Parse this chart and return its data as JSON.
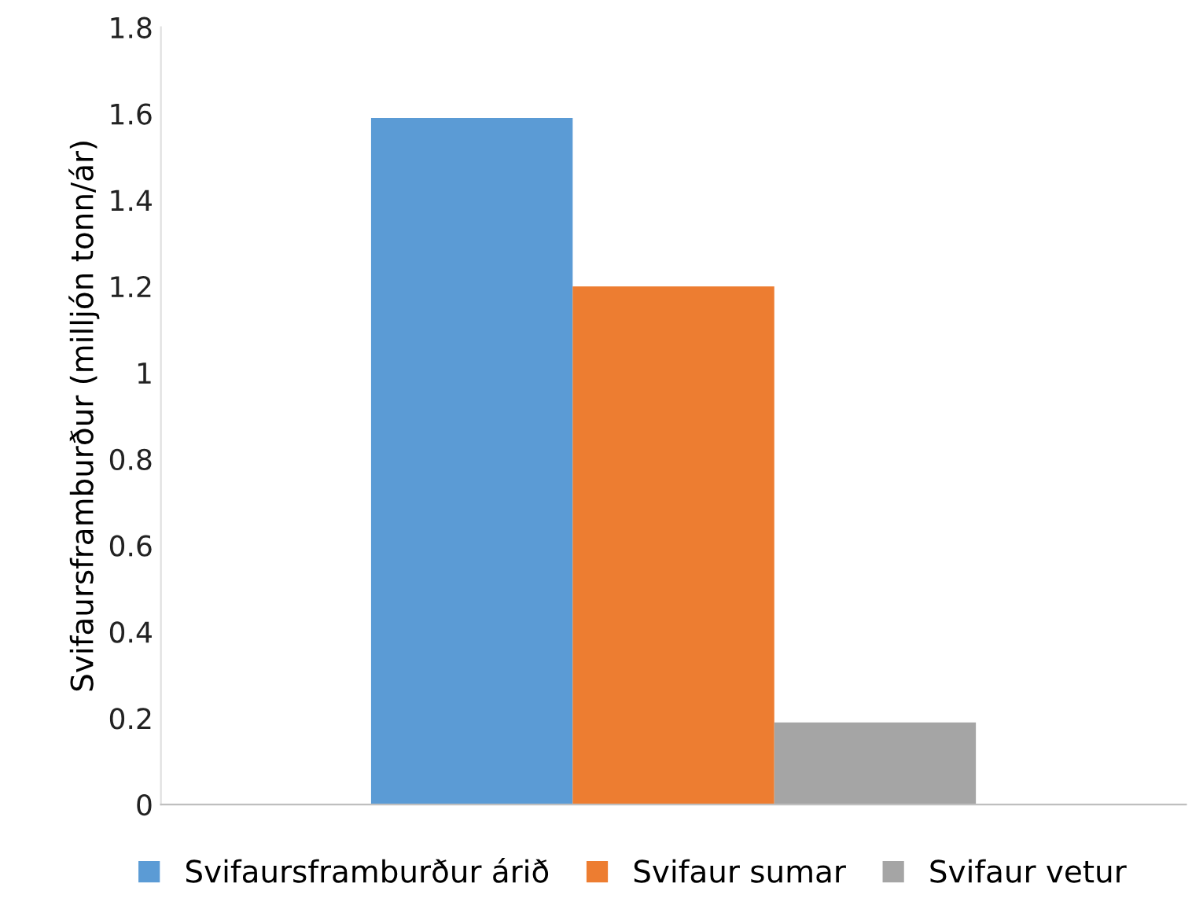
{
  "chart_data": {
    "type": "bar",
    "ylabel": "Svifaursframburður (milljón tonn/ár)",
    "categories": [
      null
    ],
    "series": [
      {
        "name": "Svifaursframburður árið",
        "color": "#5b9bd5",
        "values": [
          1.59
        ]
      },
      {
        "name": "Svifaur sumar",
        "color": "#ed7d31",
        "values": [
          1.2
        ]
      },
      {
        "name": "Svifaur vetur",
        "color": "#a5a5a5",
        "values": [
          0.19
        ]
      }
    ],
    "ylim": [
      0,
      1.8
    ],
    "yticks": [
      0,
      0.2,
      0.4,
      0.6,
      0.8,
      1,
      1.2,
      1.4,
      1.6,
      1.8
    ],
    "grid": false,
    "legend": "bottom"
  }
}
